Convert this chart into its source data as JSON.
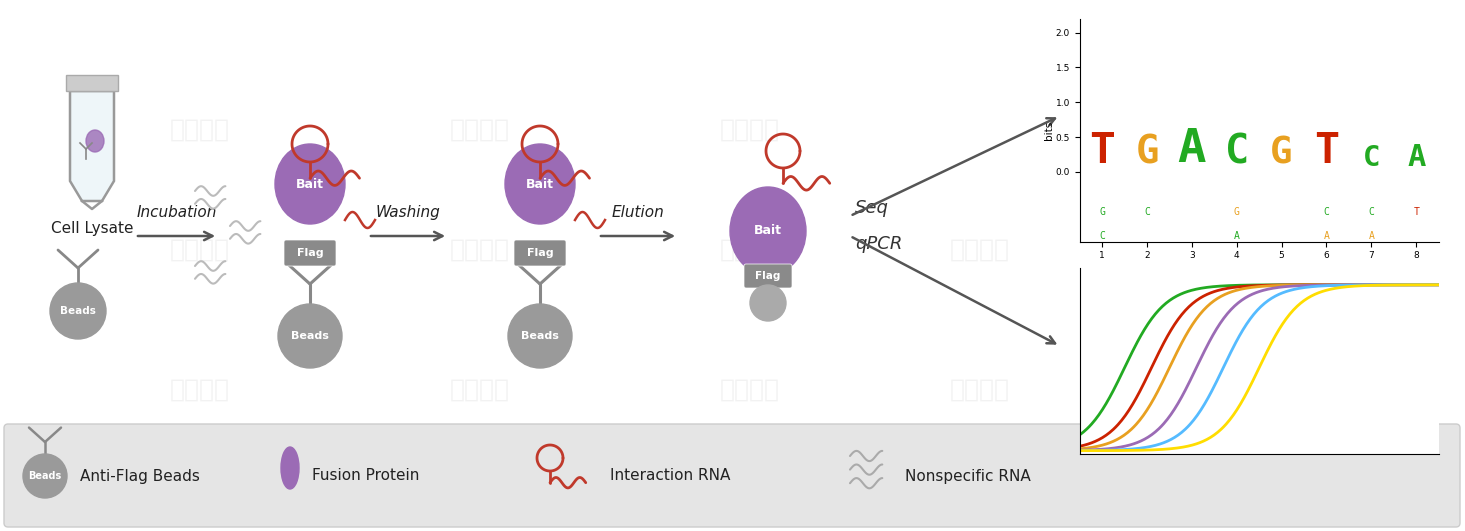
{
  "bg_color": "#ffffff",
  "gray_bead": "#9a9a9a",
  "gray_dark": "#777777",
  "purple_bait": "#9b6bb5",
  "purple_light": "#b08ac0",
  "red_rna": "#c0392b",
  "gray_rna": "#aaaaaa",
  "flag_gray": "#8a8a8a",
  "arrow_color": "#555555",
  "text_color": "#222222",
  "legend_bg": "#e8e8e8",
  "wm_color": "#cccccc",
  "wm_alpha": 0.25,
  "wm_text": "辉验生物",
  "seq_letters": [
    "T",
    "G",
    "A",
    "C",
    "G",
    "T",
    "C",
    "A"
  ],
  "seq_colors": [
    "#cc2200",
    "#e8a020",
    "#22aa22",
    "#22aa22",
    "#e8a020",
    "#cc2200",
    "#22aa22",
    "#22aa22"
  ],
  "seq_heights": [
    1.75,
    1.5,
    2.0,
    1.6,
    1.4,
    1.7,
    0.85,
    0.95
  ],
  "seq_small": [
    [
      "G",
      "C"
    ],
    [
      "C"
    ],
    [
      ""
    ],
    [
      "G",
      "A"
    ],
    [
      ""
    ],
    [
      "C",
      "A"
    ],
    [
      "C",
      "A"
    ],
    [
      "T"
    ]
  ],
  "seq_small_colors": [
    [
      "#22aa22",
      "#22aa22"
    ],
    [
      "#22aa22"
    ],
    [
      ""
    ],
    [
      "#e8a020",
      "#22aa22"
    ],
    [
      ""
    ],
    [
      "#22aa22",
      "#e8a020"
    ],
    [
      "#22aa22",
      "#e8a020"
    ],
    [
      "#cc2200"
    ]
  ],
  "qpcr_colors": [
    "#22aa22",
    "#cc2200",
    "#e8a020",
    "#9b6bb5",
    "#55bbff",
    "#ffdd00"
  ],
  "qpcr_shifts": [
    5,
    8,
    10,
    13,
    16,
    20
  ],
  "legend_items": [
    "Anti-Flag Beads",
    "Fusion Protein",
    "Interaction RNA",
    "Nonspecific RNA"
  ]
}
